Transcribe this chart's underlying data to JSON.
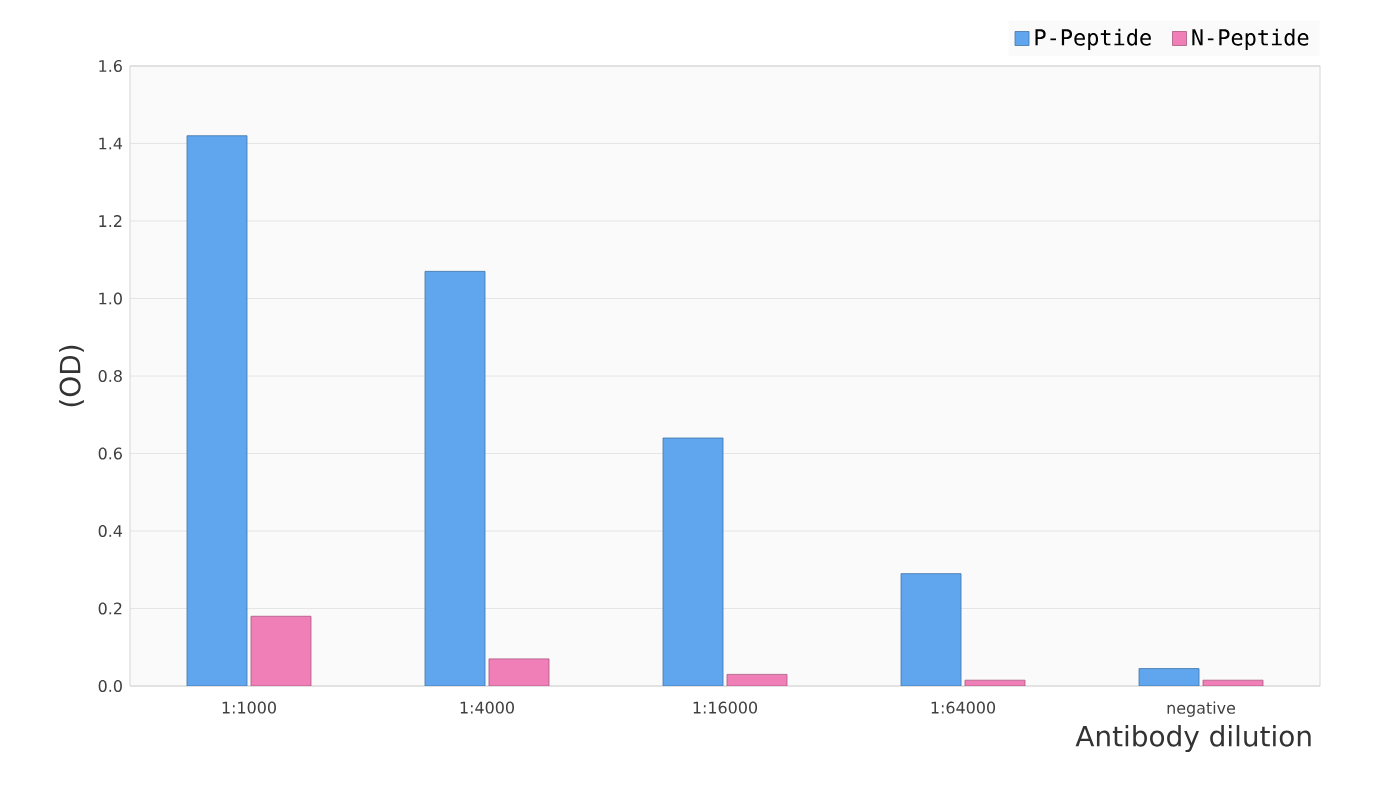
{
  "chart_data": {
    "type": "bar",
    "ylabel": "(OD)",
    "xlabel": "Antibody dilution",
    "categories": [
      "1:1000",
      "1:4000",
      "1:16000",
      "1:64000",
      "negative"
    ],
    "series": [
      {
        "name": "P-Peptide",
        "color": "#5fa6ef",
        "values": [
          1.42,
          1.07,
          0.64,
          0.29,
          0.045
        ]
      },
      {
        "name": "N-Peptide",
        "color": "#f07fb8",
        "values": [
          0.18,
          0.07,
          0.03,
          0.015,
          0.015
        ]
      }
    ],
    "ylim": [
      0,
      1.6
    ],
    "yticks": [
      {
        "value": 0,
        "label": "0.0"
      },
      0.2,
      0.4,
      0.6,
      0.8,
      {
        "value": 1,
        "label": "1.0"
      },
      1.2,
      1.4,
      1.6
    ],
    "grid": "y",
    "legend": "top right"
  }
}
